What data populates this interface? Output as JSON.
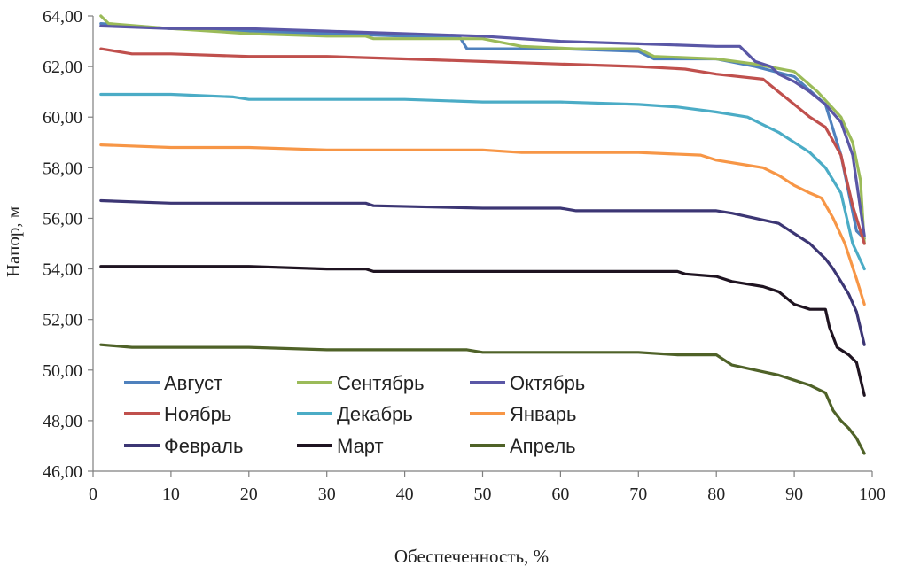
{
  "chart_data": {
    "type": "line",
    "title": "",
    "xlabel": "Обеспеченность, %",
    "ylabel": "Напор, м",
    "xlim": [
      0,
      100
    ],
    "ylim": [
      46,
      64
    ],
    "xticks": [
      0,
      10,
      20,
      30,
      40,
      50,
      60,
      70,
      80,
      90,
      100
    ],
    "xtick_labels": [
      "0",
      "10",
      "20",
      "30",
      "40",
      "50",
      "60",
      "70",
      "80",
      "90",
      "100"
    ],
    "yticks": [
      46,
      48,
      50,
      52,
      54,
      56,
      58,
      60,
      62,
      64
    ],
    "ytick_labels": [
      "46,00",
      "48,00",
      "50,00",
      "52,00",
      "54,00",
      "56,00",
      "58,00",
      "60,00",
      "62,00",
      "64,00"
    ],
    "grid": false,
    "legend_position": "bottom-left inside",
    "series": [
      {
        "name": "Август",
        "color": "#4f81bd",
        "points": [
          [
            1,
            63.7
          ],
          [
            10,
            63.5
          ],
          [
            20,
            63.4
          ],
          [
            30,
            63.3
          ],
          [
            40,
            63.2
          ],
          [
            47,
            63.2
          ],
          [
            48,
            62.7
          ],
          [
            60,
            62.7
          ],
          [
            70,
            62.6
          ],
          [
            72,
            62.3
          ],
          [
            80,
            62.3
          ],
          [
            85,
            62.0
          ],
          [
            90,
            61.6
          ],
          [
            94,
            60.5
          ],
          [
            96,
            58.5
          ],
          [
            98,
            55.5
          ],
          [
            99,
            55.2
          ]
        ]
      },
      {
        "name": "Сентябрь",
        "color": "#9bbb59",
        "points": [
          [
            1,
            64.0
          ],
          [
            2,
            63.7
          ],
          [
            10,
            63.5
          ],
          [
            20,
            63.3
          ],
          [
            30,
            63.2
          ],
          [
            35,
            63.2
          ],
          [
            36,
            63.1
          ],
          [
            50,
            63.1
          ],
          [
            55,
            62.8
          ],
          [
            62,
            62.7
          ],
          [
            70,
            62.7
          ],
          [
            72,
            62.4
          ],
          [
            80,
            62.3
          ],
          [
            85,
            62.1
          ],
          [
            90,
            61.8
          ],
          [
            93,
            61.0
          ],
          [
            96,
            60.0
          ],
          [
            97.5,
            59.0
          ],
          [
            98.5,
            57.5
          ],
          [
            99,
            55.0
          ]
        ]
      },
      {
        "name": "Октябрь",
        "color": "#5a57a6",
        "points": [
          [
            1,
            63.6
          ],
          [
            10,
            63.5
          ],
          [
            20,
            63.5
          ],
          [
            30,
            63.4
          ],
          [
            40,
            63.3
          ],
          [
            50,
            63.2
          ],
          [
            60,
            63.0
          ],
          [
            70,
            62.9
          ],
          [
            80,
            62.8
          ],
          [
            83,
            62.8
          ],
          [
            85,
            62.2
          ],
          [
            87,
            62.0
          ],
          [
            88,
            61.7
          ],
          [
            90,
            61.4
          ],
          [
            92,
            61.0
          ],
          [
            94,
            60.5
          ],
          [
            96,
            59.8
          ],
          [
            97.5,
            58.5
          ],
          [
            99,
            55.3
          ]
        ]
      },
      {
        "name": "Ноябрь",
        "color": "#c0504d",
        "points": [
          [
            1,
            62.7
          ],
          [
            5,
            62.5
          ],
          [
            10,
            62.5
          ],
          [
            20,
            62.4
          ],
          [
            30,
            62.4
          ],
          [
            40,
            62.3
          ],
          [
            50,
            62.2
          ],
          [
            60,
            62.1
          ],
          [
            70,
            62.0
          ],
          [
            76,
            61.9
          ],
          [
            80,
            61.7
          ],
          [
            86,
            61.5
          ],
          [
            88,
            61.0
          ],
          [
            90,
            60.5
          ],
          [
            92,
            60.0
          ],
          [
            94,
            59.6
          ],
          [
            96,
            58.5
          ],
          [
            97.5,
            56.5
          ],
          [
            99,
            55.0
          ]
        ]
      },
      {
        "name": "Декабрь",
        "color": "#4bacc6",
        "points": [
          [
            1,
            60.9
          ],
          [
            10,
            60.9
          ],
          [
            18,
            60.8
          ],
          [
            20,
            60.7
          ],
          [
            30,
            60.7
          ],
          [
            40,
            60.7
          ],
          [
            50,
            60.6
          ],
          [
            60,
            60.6
          ],
          [
            70,
            60.5
          ],
          [
            75,
            60.4
          ],
          [
            80,
            60.2
          ],
          [
            84,
            60.0
          ],
          [
            86,
            59.7
          ],
          [
            88,
            59.4
          ],
          [
            90,
            59.0
          ],
          [
            92,
            58.6
          ],
          [
            94,
            58.0
          ],
          [
            96,
            57.0
          ],
          [
            97.5,
            55.0
          ],
          [
            99,
            54.0
          ]
        ]
      },
      {
        "name": "Январь",
        "color": "#f79646",
        "points": [
          [
            1,
            58.9
          ],
          [
            10,
            58.8
          ],
          [
            20,
            58.8
          ],
          [
            30,
            58.7
          ],
          [
            40,
            58.7
          ],
          [
            50,
            58.7
          ],
          [
            55,
            58.6
          ],
          [
            60,
            58.6
          ],
          [
            70,
            58.6
          ],
          [
            78,
            58.5
          ],
          [
            80,
            58.3
          ],
          [
            84,
            58.1
          ],
          [
            86,
            58.0
          ],
          [
            88,
            57.7
          ],
          [
            90,
            57.3
          ],
          [
            92,
            57.0
          ],
          [
            93.5,
            56.8
          ],
          [
            95,
            56.0
          ],
          [
            96.5,
            55.0
          ],
          [
            98,
            53.6
          ],
          [
            99,
            52.6
          ]
        ]
      },
      {
        "name": "Февраль",
        "color": "#3c3674",
        "points": [
          [
            1,
            56.7
          ],
          [
            10,
            56.6
          ],
          [
            20,
            56.6
          ],
          [
            30,
            56.6
          ],
          [
            35,
            56.6
          ],
          [
            36,
            56.5
          ],
          [
            50,
            56.4
          ],
          [
            60,
            56.4
          ],
          [
            62,
            56.3
          ],
          [
            70,
            56.3
          ],
          [
            80,
            56.3
          ],
          [
            82,
            56.2
          ],
          [
            85,
            56.0
          ],
          [
            88,
            55.8
          ],
          [
            90,
            55.4
          ],
          [
            92,
            55.0
          ],
          [
            93,
            54.7
          ],
          [
            94,
            54.4
          ],
          [
            95,
            54.0
          ],
          [
            96,
            53.5
          ],
          [
            97,
            53.0
          ],
          [
            98,
            52.3
          ],
          [
            99,
            51.0
          ]
        ]
      },
      {
        "name": "Март",
        "color": "#1f1421",
        "points": [
          [
            1,
            54.1
          ],
          [
            10,
            54.1
          ],
          [
            20,
            54.1
          ],
          [
            30,
            54.0
          ],
          [
            35,
            54.0
          ],
          [
            36,
            53.9
          ],
          [
            50,
            53.9
          ],
          [
            60,
            53.9
          ],
          [
            70,
            53.9
          ],
          [
            75,
            53.9
          ],
          [
            76,
            53.8
          ],
          [
            80,
            53.7
          ],
          [
            82,
            53.5
          ],
          [
            84,
            53.4
          ],
          [
            86,
            53.3
          ],
          [
            88,
            53.1
          ],
          [
            90,
            52.6
          ],
          [
            92,
            52.4
          ],
          [
            94,
            52.4
          ],
          [
            94.5,
            51.7
          ],
          [
            95.5,
            50.9
          ],
          [
            97,
            50.6
          ],
          [
            98,
            50.3
          ],
          [
            99,
            49.0
          ]
        ]
      },
      {
        "name": "Апрель",
        "color": "#4f6228",
        "points": [
          [
            1,
            51.0
          ],
          [
            5,
            50.9
          ],
          [
            10,
            50.9
          ],
          [
            20,
            50.9
          ],
          [
            30,
            50.8
          ],
          [
            36,
            50.8
          ],
          [
            40,
            50.8
          ],
          [
            48,
            50.8
          ],
          [
            50,
            50.7
          ],
          [
            60,
            50.7
          ],
          [
            70,
            50.7
          ],
          [
            75,
            50.6
          ],
          [
            80,
            50.6
          ],
          [
            82,
            50.2
          ],
          [
            85,
            50.0
          ],
          [
            88,
            49.8
          ],
          [
            90,
            49.6
          ],
          [
            92,
            49.4
          ],
          [
            94,
            49.1
          ],
          [
            95,
            48.4
          ],
          [
            96,
            48.0
          ],
          [
            97,
            47.7
          ],
          [
            98,
            47.3
          ],
          [
            99,
            46.7
          ]
        ]
      }
    ]
  }
}
